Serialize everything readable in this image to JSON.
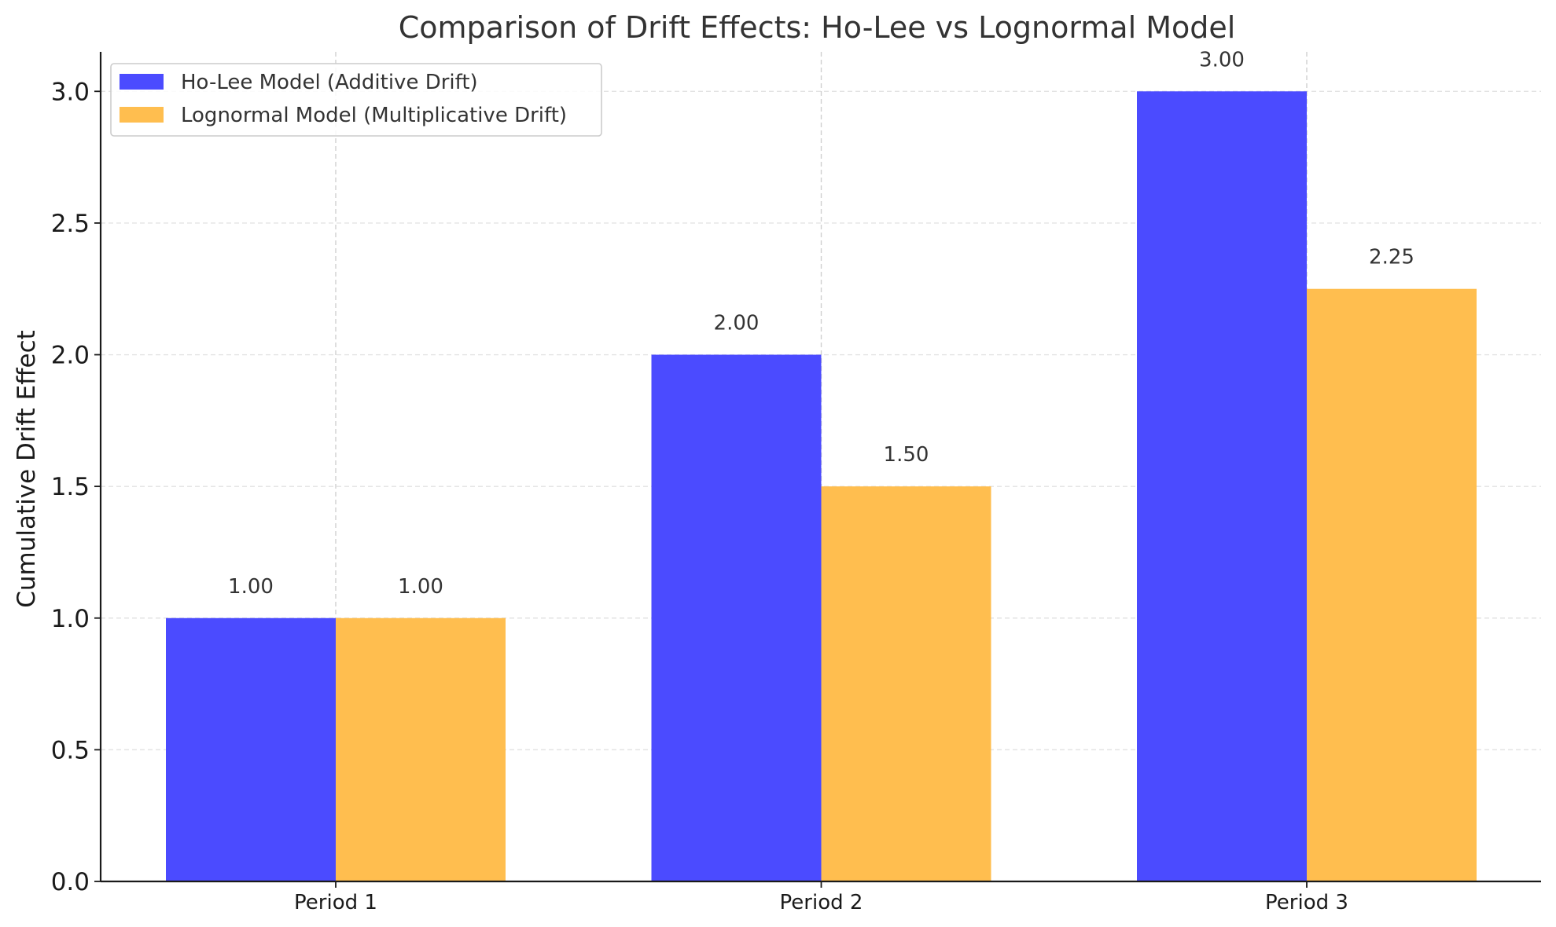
{
  "chart_data": {
    "type": "bar",
    "title": "Comparison of Drift Effects: Ho-Lee vs Lognormal Model",
    "xlabel": "",
    "ylabel": "Cumulative Drift Effect",
    "categories": [
      "Period 1",
      "Period 2",
      "Period 3"
    ],
    "series": [
      {
        "name": "Ho-Lee Model (Additive Drift)",
        "values": [
          1.0,
          2.0,
          3.0
        ],
        "labels": [
          "1.00",
          "2.00",
          "3.00"
        ],
        "color": "#4b4bff"
      },
      {
        "name": "Lognormal Model (Multiplicative Drift)",
        "values": [
          1.0,
          1.5,
          2.25
        ],
        "labels": [
          "1.00",
          "1.50",
          "2.25"
        ],
        "color": "#ffbe4f"
      }
    ],
    "ylim": [
      0,
      3.15
    ],
    "yticks": [
      0.0,
      0.5,
      1.0,
      1.5,
      2.0,
      2.5,
      3.0
    ],
    "ytick_labels": [
      "0.0",
      "0.5",
      "1.0",
      "1.5",
      "2.0",
      "2.5",
      "3.0"
    ],
    "grid": true,
    "legend_position": "top-left"
  }
}
